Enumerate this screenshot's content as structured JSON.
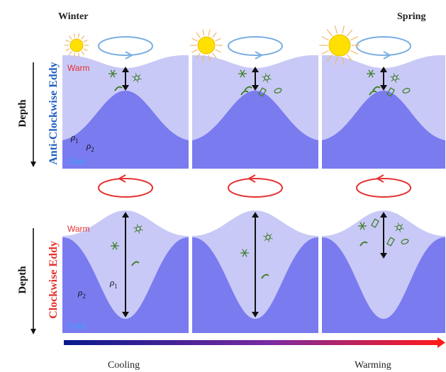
{
  "seasons": {
    "left": "Winter",
    "right": "Spring"
  },
  "depth_label": "Depth",
  "rows": {
    "top": {
      "eddy_word1": "Anti-Clockwise",
      "eddy_word2": "Eddy",
      "word1_color": "#1f5fbf",
      "word2_color": "#1f5fbf",
      "loop_color": "#7aaee0"
    },
    "bottom": {
      "eddy_word1": "Clockwise",
      "eddy_word2": "Eddy",
      "word1_color": "#e5312f",
      "word2_color": "#e5312f",
      "loop_color": "#e5312f"
    }
  },
  "labels": {
    "warm": "Warm",
    "cold": "Cold",
    "rho": "ρ",
    "rho1_sub": "1",
    "rho2_sub": "2"
  },
  "gradient": {
    "left_label": "Cooling",
    "right_label": "Warming",
    "start_color": "#0a1a8c",
    "mid_color": "#7a2aa0",
    "end_color": "#ff1a1a"
  },
  "colors": {
    "light_water": "#c9c9f7",
    "dense_water": "#7b7bf0",
    "plankton": "#3f7f2a",
    "sun": "#ffe000",
    "sun_ray": "#f2b56b"
  }
}
